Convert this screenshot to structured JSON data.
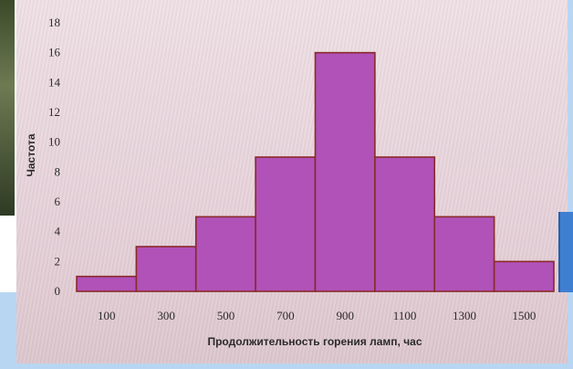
{
  "chart_data": {
    "type": "bar",
    "categories": [
      "100",
      "300",
      "500",
      "700",
      "900",
      "1100",
      "1300",
      "1500"
    ],
    "values": [
      1,
      3,
      5,
      9,
      16,
      9,
      5,
      2
    ],
    "title": "",
    "xlabel": "Продолжительность горения ламп, час",
    "ylabel": "Частота",
    "ylim": [
      0,
      18
    ],
    "yticks": [
      0,
      2,
      4,
      6,
      8,
      10,
      12,
      14,
      16,
      18
    ],
    "grid": false,
    "colors": {
      "bar_fill": "#b052b8",
      "bar_stroke": "#8a2a2a"
    }
  }
}
